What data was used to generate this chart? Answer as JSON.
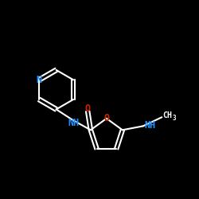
{
  "bg_color": "#000000",
  "bond_color": "#ffffff",
  "N_color": "#1e90ff",
  "O_color": "#cc2200",
  "font_size": 8.5,
  "line_width": 1.5,
  "figsize": [
    2.5,
    2.5
  ],
  "dpi": 100,
  "xlim": [
    0,
    10
  ],
  "ylim": [
    0,
    10
  ]
}
